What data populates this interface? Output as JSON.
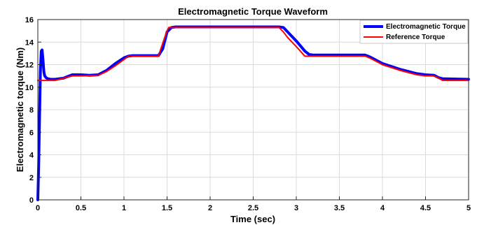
{
  "chart_data": {
    "type": "line",
    "title": "Electromagnetic Torque Waveform",
    "xlabel": "Time (sec)",
    "ylabel": "Electromagnetic torque (Nm)",
    "xlim": [
      0,
      5
    ],
    "ylim": [
      0,
      16
    ],
    "xticks": [
      0,
      0.5,
      1,
      1.5,
      2,
      2.5,
      3,
      3.5,
      4,
      4.5,
      5
    ],
    "xtick_labels": [
      "0",
      "0.5",
      "1",
      "1.5",
      "2",
      "2.5",
      "3",
      "3.5",
      "4",
      "4.5",
      "5"
    ],
    "yticks": [
      0,
      2,
      4,
      6,
      8,
      10,
      12,
      14,
      16
    ],
    "ytick_labels": [
      "0",
      "2",
      "4",
      "6",
      "8",
      "10",
      "12",
      "14",
      "16"
    ],
    "grid": true,
    "legend_position": "top-right",
    "series": [
      {
        "name": "Electromagnetic Torque",
        "color": "#0000ff",
        "x": [
          0,
          0.01,
          0.02,
          0.03,
          0.04,
          0.05,
          0.06,
          0.07,
          0.08,
          0.1,
          0.12,
          0.15,
          0.2,
          0.3,
          0.4,
          0.5,
          0.6,
          0.7,
          0.8,
          0.9,
          1.0,
          1.05,
          1.1,
          1.2,
          1.3,
          1.4,
          1.45,
          1.5,
          1.55,
          1.6,
          1.8,
          2.0,
          2.2,
          2.4,
          2.6,
          2.8,
          2.85,
          2.9,
          3.0,
          3.1,
          3.15,
          3.2,
          3.4,
          3.6,
          3.8,
          3.85,
          3.9,
          4.0,
          4.2,
          4.4,
          4.5,
          4.6,
          4.65,
          4.7,
          5.0
        ],
        "y": [
          0,
          3.0,
          7.5,
          11.5,
          13.2,
          13.3,
          12.4,
          11.4,
          11.0,
          10.8,
          10.75,
          10.7,
          10.7,
          10.8,
          11.1,
          11.1,
          11.05,
          11.1,
          11.5,
          12.1,
          12.6,
          12.75,
          12.8,
          12.8,
          12.8,
          12.8,
          13.4,
          14.9,
          15.3,
          15.35,
          15.35,
          15.35,
          15.35,
          15.35,
          15.35,
          15.35,
          15.3,
          14.9,
          14.1,
          13.2,
          12.9,
          12.85,
          12.85,
          12.85,
          12.85,
          12.7,
          12.5,
          12.1,
          11.6,
          11.2,
          11.1,
          11.05,
          10.85,
          10.75,
          10.7
        ]
      },
      {
        "name": "Reference Torque",
        "color": "#ff0000",
        "x": [
          0,
          0.2,
          0.4,
          0.5,
          0.7,
          0.8,
          0.9,
          1.0,
          1.05,
          1.1,
          1.4,
          1.45,
          1.5,
          1.52,
          2.8,
          2.85,
          2.9,
          3.0,
          3.1,
          3.8,
          3.85,
          3.9,
          4.0,
          4.2,
          4.4,
          4.5,
          4.6,
          4.65,
          4.7,
          5.0
        ],
        "y": [
          10.6,
          10.6,
          11.0,
          11.0,
          11.05,
          11.4,
          11.9,
          12.45,
          12.75,
          12.75,
          12.75,
          13.9,
          15.0,
          15.3,
          15.3,
          14.9,
          14.4,
          13.6,
          12.75,
          12.75,
          12.6,
          12.4,
          12.0,
          11.5,
          11.1,
          11.0,
          11.0,
          10.8,
          10.6,
          10.6
        ]
      }
    ]
  }
}
